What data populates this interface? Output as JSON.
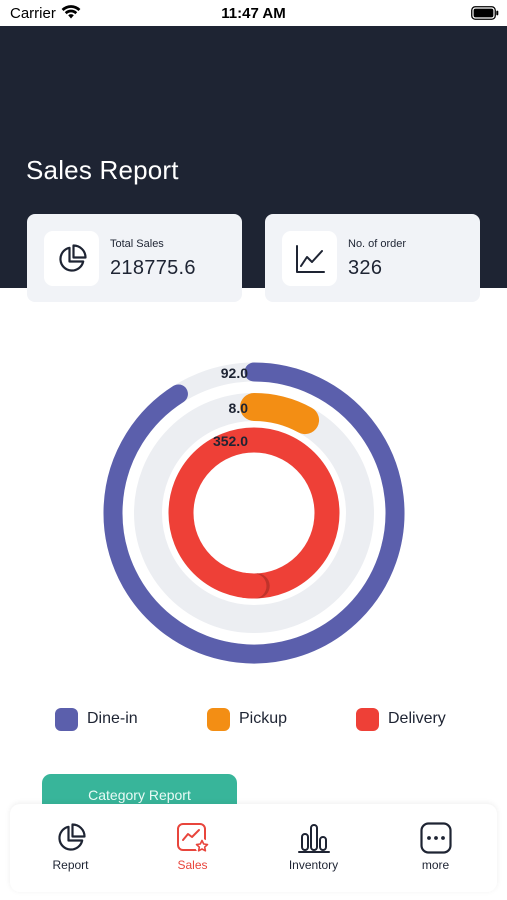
{
  "status": {
    "carrier": "Carrier",
    "time": "11:47 AM"
  },
  "header": {
    "title": "Sales Report"
  },
  "stats": {
    "total_sales": {
      "label": "Total Sales",
      "value": "218775.6",
      "icon": "pie-chart-icon"
    },
    "orders": {
      "label": "No. of order",
      "value": "326",
      "icon": "line-chart-icon"
    }
  },
  "chart_data": {
    "type": "radial-bar",
    "series": [
      {
        "name": "Dine-in",
        "value": 92.0,
        "label": "92.0",
        "fraction": 0.91,
        "color": "#5b5fac"
      },
      {
        "name": "Pickup",
        "value": 8.0,
        "label": "8.0",
        "fraction": 0.08,
        "color": "#f38e14"
      },
      {
        "name": "Delivery",
        "value": 352.0,
        "label": "352.0",
        "fraction": 1.0,
        "color": "#ee4037"
      }
    ],
    "track_color": "#eceef2"
  },
  "legend": [
    {
      "label": "Dine-in",
      "color": "#5b5fac"
    },
    {
      "label": "Pickup",
      "color": "#f38e14"
    },
    {
      "label": "Delivery",
      "color": "#ee4037"
    }
  ],
  "report_button": {
    "label": "Category Report"
  },
  "nav": [
    {
      "label": "Report",
      "icon": "pie-chart-icon",
      "active": false
    },
    {
      "label": "Sales",
      "icon": "sales-icon",
      "active": true
    },
    {
      "label": "Inventory",
      "icon": "bar-chart-icon",
      "active": false
    },
    {
      "label": "more",
      "icon": "more-icon",
      "active": false
    }
  ]
}
